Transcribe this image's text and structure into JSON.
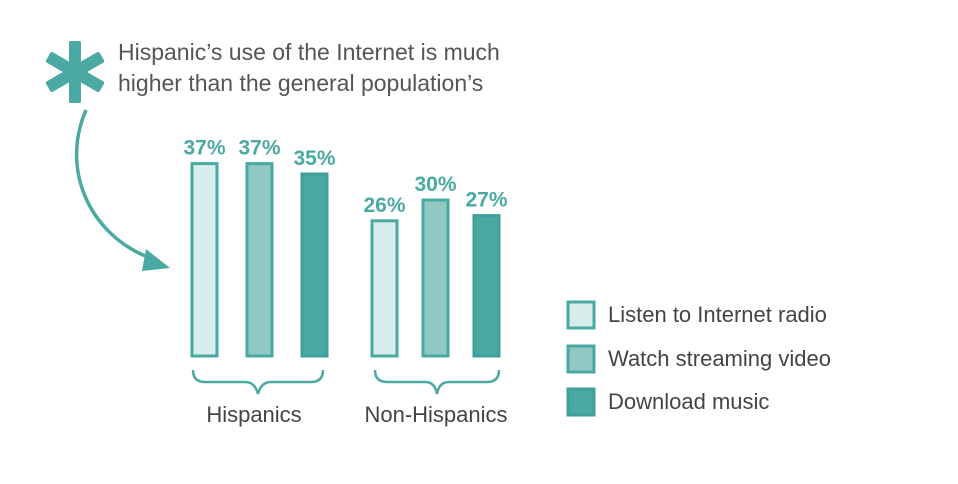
{
  "chart_data": {
    "type": "bar",
    "title": "Hispanic’s use of the Internet is much higher than the general population’s",
    "title_lines": [
      "Hispanic’s use of the Internet is much",
      "higher than the general population’s"
    ],
    "categories": [
      "Hispanics",
      "Non-Hispanics"
    ],
    "series": [
      {
        "name": "Listen to Internet radio",
        "values": [
          37,
          26
        ],
        "labels": [
          "37%",
          "26%"
        ],
        "color": "#d8eeec",
        "stroke": "#4aa9a3"
      },
      {
        "name": "Watch streaming video",
        "values": [
          37,
          30
        ],
        "labels": [
          "37%",
          "30%"
        ],
        "color": "#92c8c3",
        "stroke": "#4aa9a3"
      },
      {
        "name": "Download music",
        "values": [
          35,
          27
        ],
        "labels": [
          "35%",
          "27%"
        ],
        "color": "#4aa9a3",
        "stroke": "#3f9f99"
      }
    ],
    "unit": "%",
    "ylim": [
      0,
      37
    ],
    "legend_position": "right",
    "grid": false
  },
  "colors": {
    "accent": "#4aa9a3",
    "label_text": "#4aa9a3",
    "text": "#555555"
  },
  "icons": {
    "asterisk": "asterisk-icon",
    "arrow": "curved-arrow-icon"
  }
}
